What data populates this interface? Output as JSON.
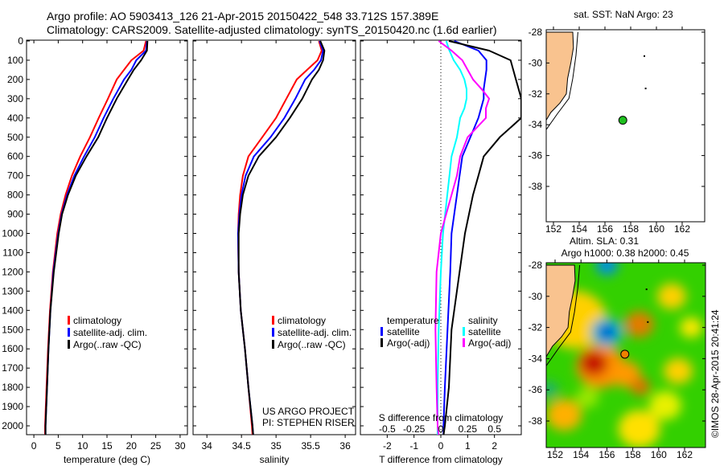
{
  "header": {
    "line1": "Argo profile: AO 5903413_126 21-Apr-2015 20150422_548 33.712S 157.389E",
    "line2": "Climatology: CARS2009. Satellite-adjusted climatology: synTS_20150420.nc (1.6d earlier)"
  },
  "colors": {
    "clim": "#ff0000",
    "sat": "#0000ff",
    "argo": "#000000",
    "sal_sat": "#00ffff",
    "sal_argo": "#ff00ff",
    "land": "#f9c38f",
    "float": "#1fbf1f"
  },
  "chart_data": [
    {
      "type": "line",
      "name": "temperature",
      "xlabel": "temperature (deg C)",
      "xlim": [
        -1.5,
        31.5
      ],
      "xticks": [
        0,
        5,
        10,
        15,
        20,
        25,
        30
      ],
      "ylim": [
        0,
        2050
      ],
      "yticks": [
        0,
        100,
        200,
        300,
        400,
        500,
        600,
        700,
        800,
        900,
        1000,
        1100,
        1200,
        1300,
        1400,
        1500,
        1600,
        1700,
        1800,
        1900,
        2000
      ],
      "depth": [
        0,
        50,
        100,
        150,
        200,
        300,
        400,
        500,
        600,
        700,
        800,
        900,
        1000,
        1200,
        1400,
        1600,
        1800,
        2000,
        2050
      ],
      "series": [
        {
          "name": "climatology",
          "color": "#ff0000",
          "values": [
            23,
            22.5,
            20,
            18.5,
            17,
            15.2,
            13.3,
            11.5,
            9.5,
            7.8,
            6.5,
            5.5,
            4.8,
            3.9,
            3.3,
            2.9,
            2.6,
            2.3,
            2.3
          ]
        },
        {
          "name": "satellite-adj. clim.",
          "color": "#0000ff",
          "values": [
            23.2,
            23,
            21,
            20,
            18.5,
            16.3,
            14.3,
            12.5,
            10.3,
            8.3,
            6.8,
            5.7,
            5,
            4,
            3.4,
            3,
            2.7,
            2.4,
            2.4
          ]
        },
        {
          "name": "Argo(..raw -QC)",
          "color": "#000000",
          "values": [
            23.3,
            23.2,
            22,
            20.5,
            19.3,
            17,
            15,
            13.2,
            10.8,
            8.6,
            7,
            5.8,
            5.1,
            4.1,
            3.4,
            3,
            2.7,
            2.4,
            2.4
          ]
        }
      ]
    },
    {
      "type": "line",
      "name": "salinity",
      "xlabel": "salinity",
      "xlim": [
        33.8,
        36.15
      ],
      "xticks": [
        34,
        34.5,
        35,
        35.5,
        36
      ],
      "ylim": [
        0,
        2050
      ],
      "depth": [
        0,
        50,
        100,
        150,
        200,
        300,
        400,
        500,
        600,
        700,
        800,
        900,
        1000,
        1200,
        1400,
        1600,
        1800,
        2000,
        2050
      ],
      "series": [
        {
          "name": "climatology",
          "color": "#ff0000",
          "values": [
            35.62,
            35.66,
            35.6,
            35.45,
            35.3,
            35.15,
            35.0,
            34.8,
            34.6,
            34.52,
            34.48,
            34.46,
            34.45,
            34.46,
            34.49,
            34.55,
            34.6,
            34.65,
            34.66
          ]
        },
        {
          "name": "satellite-adj. clim.",
          "color": "#0000ff",
          "values": [
            35.63,
            35.68,
            35.65,
            35.55,
            35.42,
            35.28,
            35.12,
            34.92,
            34.68,
            34.56,
            34.5,
            34.47,
            34.45,
            34.46,
            34.49,
            34.55,
            34.6,
            34.66,
            34.67
          ]
        },
        {
          "name": "Argo(..raw -QC)",
          "color": "#000000",
          "values": [
            35.64,
            35.7,
            35.68,
            35.62,
            35.52,
            35.38,
            35.2,
            35.0,
            34.75,
            34.6,
            34.52,
            34.48,
            34.46,
            34.46,
            34.49,
            34.55,
            34.6,
            34.66,
            34.67
          ]
        }
      ],
      "annotation": [
        "US ARGO PROJECT",
        "PI: STEPHEN RISER"
      ]
    },
    {
      "type": "line",
      "name": "difference",
      "xlabel": "T difference from climatology",
      "xlim": [
        -3,
        3
      ],
      "xticks": [
        -2,
        -1,
        0,
        1,
        2
      ],
      "x2label": "S difference from climatology",
      "x2ticks": [
        -0.5,
        -0.25,
        0,
        0.25,
        0.5
      ],
      "x2tick_labels": [
        "-0.5",
        "-0.25",
        "0",
        "0.25",
        "0.5"
      ],
      "ylim": [
        0,
        2050
      ],
      "depth": [
        0,
        50,
        100,
        150,
        200,
        250,
        300,
        350,
        400,
        500,
        600,
        700,
        800,
        1000,
        1200,
        1500,
        1800,
        2000,
        2050
      ],
      "legend_headers": [
        "temperature",
        "salinity"
      ],
      "series": [
        {
          "name": "satellite",
          "group": "temperature",
          "unit": "T",
          "color": "#0000ff",
          "values": [
            0.5,
            1.4,
            1.7,
            1.7,
            1.65,
            1.6,
            1.6,
            1.5,
            1.4,
            1.1,
            0.8,
            0.7,
            0.6,
            0.4,
            0.35,
            0.25,
            0.15,
            0.1,
            0.1
          ]
        },
        {
          "name": "Argo(-adj)",
          "group": "temperature",
          "unit": "T",
          "color": "#000000",
          "values": [
            0.3,
            1.8,
            2.6,
            2.7,
            2.8,
            2.9,
            3.0,
            3.0,
            3.0,
            2.2,
            1.6,
            1.4,
            1.2,
            0.9,
            0.7,
            0.4,
            0.3,
            0.15,
            0.1
          ]
        },
        {
          "name": "satellite",
          "group": "salinity",
          "unit": "S",
          "color": "#00ffff",
          "values": [
            0.05,
            0.08,
            0.12,
            0.18,
            0.22,
            0.24,
            0.24,
            0.22,
            0.18,
            0.15,
            0.1,
            0.08,
            0.06,
            0.02,
            0.0,
            -0.02,
            -0.03,
            -0.03,
            -0.03
          ]
        },
        {
          "name": "Argo(-adj)",
          "group": "salinity",
          "unit": "S",
          "color": "#ff00ff",
          "values": [
            -0.02,
            0.1,
            0.2,
            0.25,
            0.3,
            0.38,
            0.45,
            0.42,
            0.42,
            0.25,
            0.18,
            0.15,
            0.1,
            0.0,
            -0.04,
            -0.05,
            -0.04,
            -0.03,
            -0.02
          ]
        }
      ]
    }
  ],
  "map_sst": {
    "title": "sat. SST: NaN Argo: 23",
    "lat_ticks": [
      -28,
      -30,
      -32,
      -34,
      -36,
      -38
    ],
    "lon_ticks": [
      152,
      154,
      156,
      158,
      160,
      162
    ],
    "float_lat": -33.712,
    "float_lon": 157.389
  },
  "map_sla": {
    "title1": "Altim. SLA: 0.31",
    "title2": "Argo h1000: 0.38 h2000: 0.45",
    "lat_ticks": [
      -28,
      -30,
      -32,
      -34,
      -36,
      -38
    ],
    "lon_ticks": [
      152,
      154,
      156,
      158,
      160,
      162
    ],
    "float_lat": -33.712,
    "float_lon": 157.389,
    "credit": "©IMOS 28-Apr-2015 20:41:24"
  }
}
